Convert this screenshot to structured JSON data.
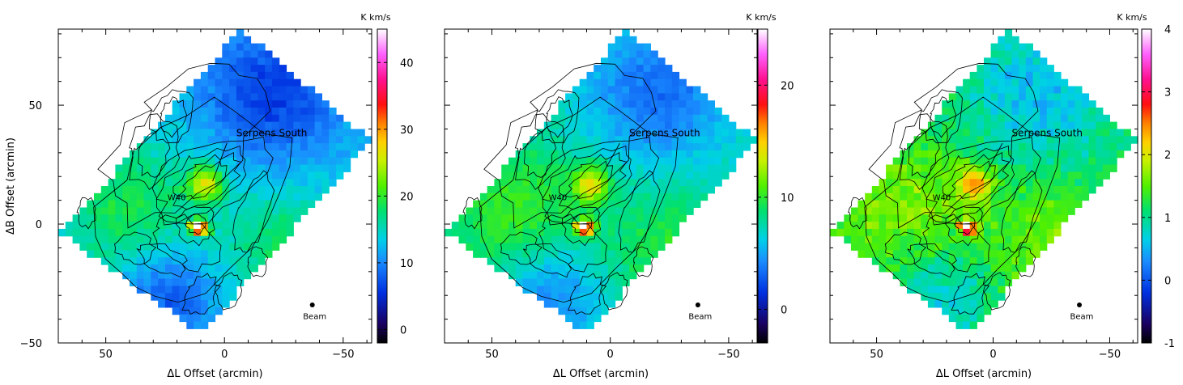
{
  "chart_data": [
    {
      "type": "heatmap",
      "xlabel": "ΔL Offset (arcmin)",
      "ylabel": "ΔB Offset (arcmin)",
      "xlim": [
        70,
        -62
      ],
      "ylim": [
        -50,
        82
      ],
      "x_ticks": [
        50,
        0,
        -50
      ],
      "x_tick_labels": [
        "50",
        "0",
        "−50"
      ],
      "y_ticks": [
        50,
        0,
        -50
      ],
      "y_tick_labels": [
        "50",
        "0",
        "−50"
      ],
      "colorbar": {
        "unit": "K km/s",
        "range": [
          -2,
          45
        ],
        "ticks": [
          0,
          10,
          20,
          30,
          40
        ]
      },
      "annotations": [
        {
          "text": "Serpens South",
          "x": -5,
          "y": 37
        },
        {
          "text": "W40",
          "x": 24,
          "y": 10
        },
        {
          "text": "Beam",
          "x": -38,
          "y": -40
        }
      ],
      "intensity_scale": 1.0
    },
    {
      "type": "heatmap",
      "xlabel": "ΔL Offset (arcmin)",
      "ylabel": "",
      "xlim": [
        70,
        -62
      ],
      "ylim": [
        -50,
        82
      ],
      "x_ticks": [
        50,
        0,
        -50
      ],
      "x_tick_labels": [
        "50",
        "0",
        "−50"
      ],
      "y_ticks": [],
      "y_tick_labels": [],
      "colorbar": {
        "unit": "K km/s",
        "range": [
          -3,
          25
        ],
        "ticks": [
          0,
          10,
          20
        ]
      },
      "annotations": [
        {
          "text": "Serpens South",
          "x": -8,
          "y": 37
        },
        {
          "text": "W40",
          "x": 26,
          "y": 10
        },
        {
          "text": "Beam",
          "x": -38,
          "y": -40
        }
      ],
      "intensity_scale": 0.55
    },
    {
      "type": "heatmap",
      "xlabel": "ΔL Offset (arcmin)",
      "ylabel": "",
      "xlim": [
        70,
        -62
      ],
      "ylim": [
        -50,
        82
      ],
      "x_ticks": [
        50,
        0,
        -50
      ],
      "x_tick_labels": [
        "50",
        "0",
        "−50"
      ],
      "y_ticks": [],
      "y_tick_labels": [],
      "colorbar": {
        "unit": "K km/s",
        "range": [
          -1,
          4
        ],
        "ticks": [
          -1,
          0,
          1,
          2,
          3,
          4
        ]
      },
      "annotations": [
        {
          "text": "Serpens South",
          "x": -8,
          "y": 37
        },
        {
          "text": "W40",
          "x": 26,
          "y": 10
        },
        {
          "text": "Beam",
          "x": -38,
          "y": -40
        }
      ],
      "intensity_scale": 0.09
    }
  ]
}
